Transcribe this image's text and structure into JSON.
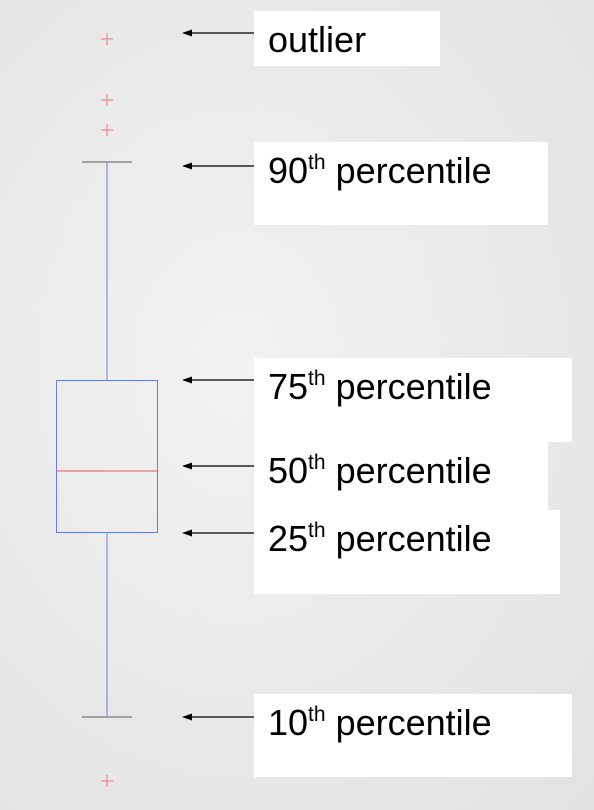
{
  "colors": {
    "box": "#6a7ee0",
    "median": "#e65a5a",
    "outlier": "#e87a7a",
    "cap": "#8a8a8a",
    "arrow": "#000000"
  },
  "labels": {
    "outlier": {
      "text": "outlier"
    },
    "p90": {
      "num": "90",
      "sup": "th",
      "word": " percentile"
    },
    "p75": {
      "num": "75",
      "sup": "th",
      "word": " percentile"
    },
    "p50": {
      "num": "50",
      "sup": "th",
      "word": " percentile"
    },
    "p25": {
      "num": "25",
      "sup": "th",
      "word": " percentile"
    },
    "p10": {
      "num": "10",
      "sup": "th",
      "word": " percentile"
    }
  }
}
